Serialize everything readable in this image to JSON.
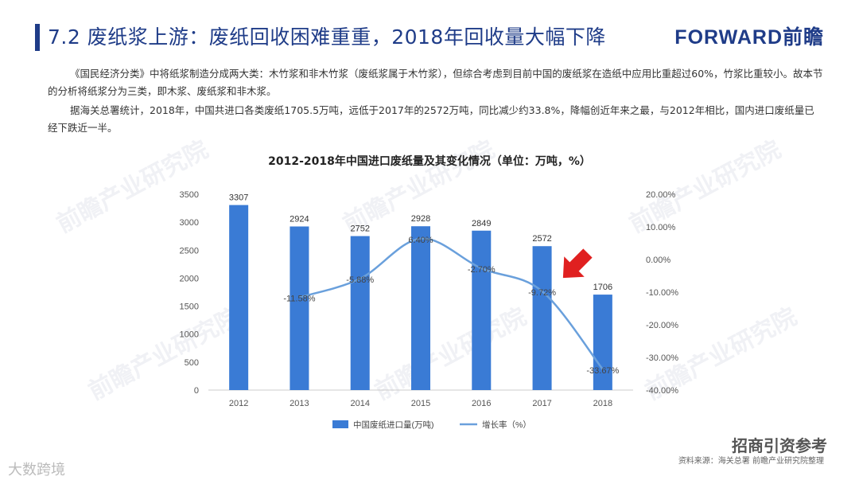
{
  "header": {
    "title": "7.2 废纸浆上游：废纸回收困难重重，2018年回收量大幅下降",
    "logo": "FORWARD前瞻"
  },
  "body": {
    "paragraph1": "《国民经济分类》中将纸浆制造分成两大类：木竹浆和非木竹浆（废纸浆属于木竹浆），但综合考虑到目前中国的废纸浆在造纸中应用比重超过60%，竹浆比重较小。故本节的分析将纸浆分为三类，即木浆、废纸浆和非木浆。",
    "paragraph2": "据海关总署统计，2018年，中国共进口各类废纸1705.5万吨，远低于2017年的2572万吨，同比减少约33.8%，降幅创近年来之最，与2012年相比，国内进口废纸量已经下跌近一半。"
  },
  "chart_data": {
    "type": "bar",
    "title": "2012-2018年中国进口废纸量及其变化情况（单位：万吨，%）",
    "categories": [
      "2012",
      "2013",
      "2014",
      "2015",
      "2016",
      "2017",
      "2018"
    ],
    "series": [
      {
        "name": "中国废纸进口量(万吨)",
        "type": "bar",
        "axis": "left",
        "values": [
          3307,
          2924,
          2752,
          2928,
          2849,
          2572,
          1706
        ],
        "labels": [
          "3307",
          "2924",
          "2752",
          "2928",
          "2849",
          "2572",
          "1706"
        ]
      },
      {
        "name": "增长率（%）",
        "type": "line",
        "axis": "right",
        "values": [
          null,
          -11.58,
          -5.88,
          6.4,
          -2.7,
          -9.72,
          -33.67
        ],
        "labels": [
          "",
          "-11.58%",
          "-5.88%",
          "6.40%",
          "-2.70%",
          "-9.72%",
          "-33.67%"
        ]
      }
    ],
    "y_left": {
      "min": 0,
      "max": 3500,
      "step": 500,
      "ticks": [
        "0",
        "500",
        "1000",
        "1500",
        "2000",
        "2500",
        "3000",
        "3500"
      ]
    },
    "y_right": {
      "min": -40,
      "max": 20,
      "step": 10,
      "ticks": [
        "-40.00%",
        "-30.00%",
        "-20.00%",
        "-10.00%",
        "0.00%",
        "10.00%",
        "20.00%"
      ]
    },
    "legend_position": "bottom",
    "annotation": "red arrow pointing down toward 2018"
  },
  "colors": {
    "bar": "#3a7bd5",
    "line": "#6aa0dc",
    "arrow": "#e02020",
    "axis_text": "#555555",
    "title_blue": "#1f3c88"
  },
  "footer": {
    "source": "资料来源：海关总署 前瞻产业研究院整理",
    "brand_right": "招商引资参考",
    "brand_left": "大数跨境"
  }
}
